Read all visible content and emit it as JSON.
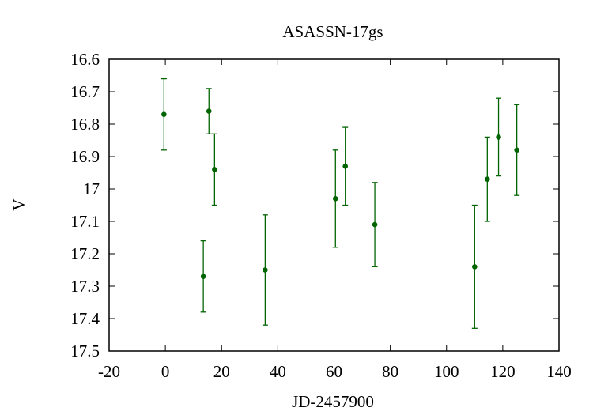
{
  "chart_data": {
    "type": "scatter",
    "title": "ASASSN-17gs",
    "xlabel": "JD-2457900",
    "ylabel": "V",
    "xlim": [
      -20,
      140
    ],
    "ylim": [
      16.6,
      17.5
    ],
    "y_inverted": true,
    "xticks": [
      -20,
      0,
      20,
      40,
      60,
      80,
      100,
      120,
      140
    ],
    "xtick_labels": [
      "-20",
      "0",
      "20",
      "40",
      "60",
      "80",
      "100",
      "120",
      "140"
    ],
    "yticks": [
      16.6,
      16.7,
      16.8,
      16.9,
      17.0,
      17.1,
      17.2,
      17.3,
      17.4,
      17.5
    ],
    "ytick_labels": [
      "16.6",
      "16.7",
      "16.8",
      "16.9",
      "17",
      "17.1",
      "17.2",
      "17.3",
      "17.4",
      "17.5"
    ],
    "grid": false,
    "color": "#006400",
    "points": [
      {
        "x": -0.5,
        "y": 16.77,
        "err": 0.11
      },
      {
        "x": 13.5,
        "y": 17.27,
        "err": 0.11
      },
      {
        "x": 15.5,
        "y": 16.76,
        "err": 0.07
      },
      {
        "x": 17.5,
        "y": 16.94,
        "err": 0.11
      },
      {
        "x": 35.5,
        "y": 17.25,
        "err": 0.17
      },
      {
        "x": 60.5,
        "y": 17.03,
        "err": 0.15
      },
      {
        "x": 64.0,
        "y": 16.93,
        "err": 0.12
      },
      {
        "x": 74.5,
        "y": 17.11,
        "err": 0.13
      },
      {
        "x": 110.0,
        "y": 17.24,
        "err": 0.19
      },
      {
        "x": 114.5,
        "y": 16.97,
        "err": 0.13
      },
      {
        "x": 118.5,
        "y": 16.84,
        "err": 0.12
      },
      {
        "x": 125.0,
        "y": 16.88,
        "err": 0.14
      }
    ]
  }
}
